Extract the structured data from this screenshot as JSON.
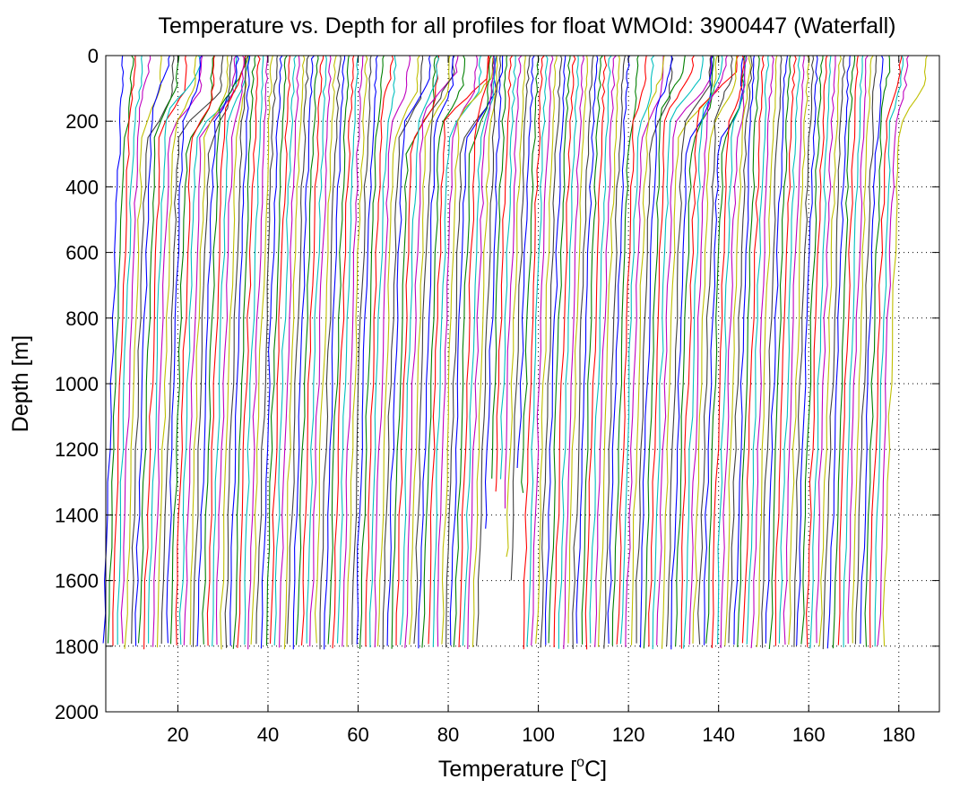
{
  "chart_data": {
    "type": "line",
    "title": "Temperature vs. Depth for all profiles for float WMOId: 3900447 (Waterfall)",
    "xlabel_main": "Temperature [",
    "xlabel_sup": "o",
    "xlabel_unit": "C]",
    "ylabel": "Depth [m]",
    "xlim": [
      4,
      189
    ],
    "ylim": [
      0,
      2000
    ],
    "y_reversed": true,
    "x_ticks": [
      "20",
      "40",
      "60",
      "80",
      "100",
      "120",
      "140",
      "160",
      "180"
    ],
    "y_ticks": [
      "0",
      "200",
      "400",
      "600",
      "800",
      "1000",
      "1200",
      "1400",
      "1600",
      "1800",
      "2000"
    ],
    "grid": "dotted",
    "profile_count": 174,
    "profile_offset_step_degC": 1,
    "first_profile_surface_temp_degC": 8,
    "typical_max_depth_m": 1810,
    "color_cycle": [
      "#0000ff",
      "#008000",
      "#ff0000",
      "#00bfbf",
      "#bf00bf",
      "#bfbf00",
      "#404040"
    ]
  }
}
